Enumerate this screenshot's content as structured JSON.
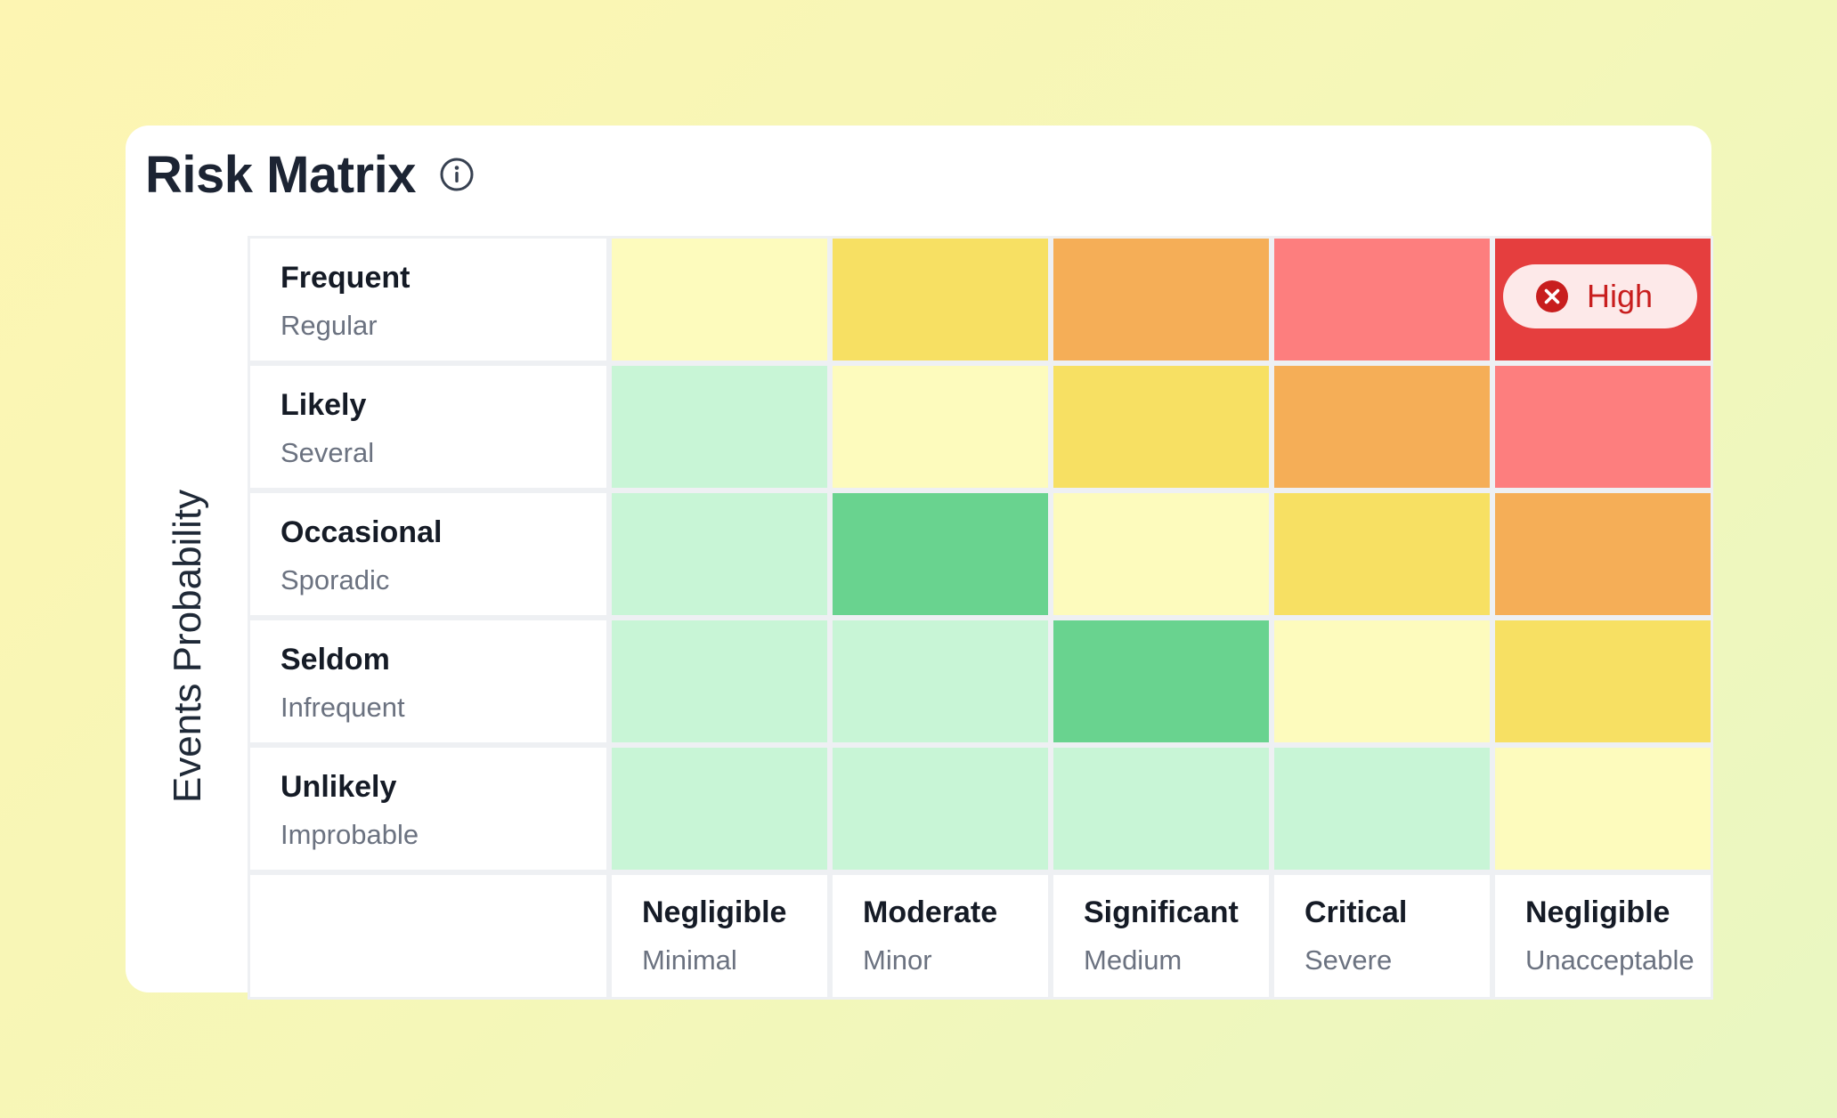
{
  "title": "Risk Matrix",
  "y_axis_label": "Events Probability",
  "colors": {
    "very_low": "#c8f5d6",
    "low": "#69d38f",
    "medium": "#fdfbbd",
    "elevated": "#f7e063",
    "high_orange": "#f5ae57",
    "severe": "#fd7e7e",
    "critical": "#e53e3e"
  },
  "rows": [
    {
      "label": "Frequent",
      "sub": "Regular",
      "cells": [
        "medium",
        "elevated",
        "high_orange",
        "severe",
        "critical"
      ]
    },
    {
      "label": "Likely",
      "sub": "Several",
      "cells": [
        "very_low",
        "medium",
        "elevated",
        "high_orange",
        "severe"
      ]
    },
    {
      "label": "Occasional",
      "sub": "Sporadic",
      "cells": [
        "very_low",
        "low",
        "medium",
        "elevated",
        "high_orange"
      ]
    },
    {
      "label": "Seldom",
      "sub": "Infrequent",
      "cells": [
        "very_low",
        "very_low",
        "low",
        "medium",
        "elevated"
      ]
    },
    {
      "label": "Unlikely",
      "sub": "Improbable",
      "cells": [
        "very_low",
        "very_low",
        "very_low",
        "very_low",
        "medium"
      ]
    }
  ],
  "columns": [
    {
      "label": "Negligible",
      "sub": "Minimal"
    },
    {
      "label": "Moderate",
      "sub": "Minor"
    },
    {
      "label": "Significant",
      "sub": "Medium"
    },
    {
      "label": "Critical",
      "sub": "Severe"
    },
    {
      "label": "Negligible",
      "sub": "Unacceptable"
    }
  ],
  "badge": {
    "label": "High",
    "icon": "x-circle-icon",
    "row": 0,
    "col": 4
  }
}
